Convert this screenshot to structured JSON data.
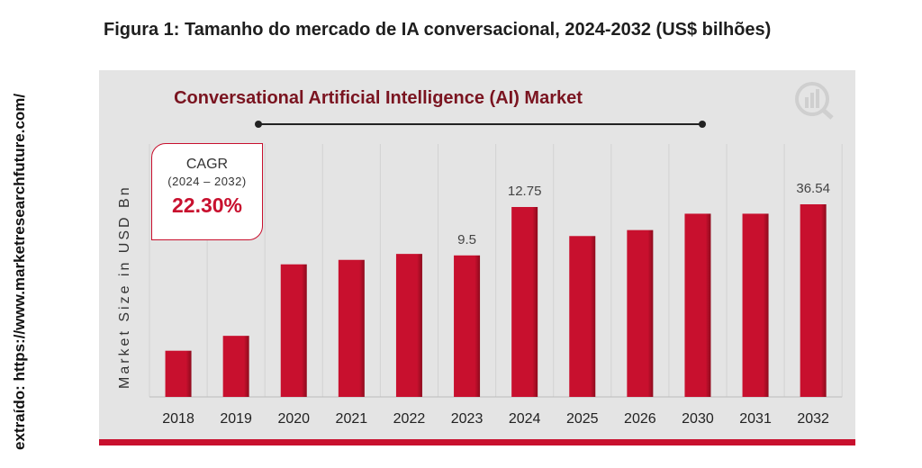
{
  "source_note": "extraído: https://www.marketresearchfuture.com/",
  "figure_title": "Figura 1: Tamanho do mercado de IA conversacional, 2024-2032 (US$ bilhões)",
  "cagr": {
    "label": "CAGR",
    "period": "(2024 – 2032)",
    "value": "22.30%"
  },
  "colors": {
    "bar": "#c8102e",
    "bar_dark": "#8e0b1d",
    "panel": "#e4e4e4",
    "title": "#7a1420",
    "accent": "#c8102e"
  },
  "logo_icon": "market-research-future-logo-icon",
  "chart_data": {
    "type": "bar",
    "title": "Conversational Artificial  Intelligence (AI) Market",
    "xlabel": "",
    "ylabel": "Market Size in USD Bn",
    "categories": [
      "2018",
      "2019",
      "2020",
      "2021",
      "2022",
      "2023",
      "2024",
      "2025",
      "2026",
      "2030",
      "2031",
      "2032"
    ],
    "values": [
      3.1,
      4.1,
      8.9,
      9.2,
      9.6,
      9.5,
      12.75,
      10.8,
      11.2,
      12.3,
      12.3,
      36.54
    ],
    "data_labels": [
      "",
      "",
      "",
      "",
      "",
      "9.5",
      "12.75",
      "",
      "",
      "",
      "",
      "36.54"
    ],
    "grid": true,
    "legend": "none"
  }
}
